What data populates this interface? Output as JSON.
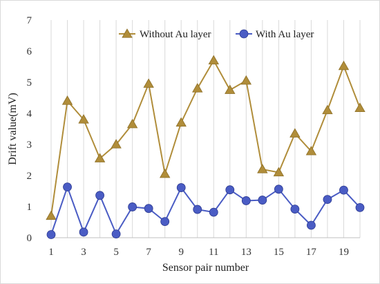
{
  "chart_data": {
    "type": "line",
    "x": [
      1,
      2,
      3,
      4,
      5,
      6,
      7,
      8,
      9,
      10,
      11,
      12,
      13,
      14,
      15,
      16,
      17,
      18,
      19,
      20
    ],
    "x_tick_labels": [
      "1",
      "3",
      "5",
      "7",
      "9",
      "11",
      "13",
      "15",
      "17",
      "19"
    ],
    "y_tick_labels": [
      "0",
      "1",
      "2",
      "3",
      "4",
      "5",
      "6",
      "7"
    ],
    "xlabel": "Sensor pair number",
    "ylabel": "Drift value(mV)",
    "ylim": [
      0,
      7
    ],
    "xlim": [
      1,
      20
    ],
    "grid": "vertical",
    "legend_position": "top",
    "series": [
      {
        "name": "Without Au layer",
        "marker": "triangle",
        "color": "#b08d3a",
        "values": [
          0.7,
          4.4,
          3.8,
          2.55,
          3.0,
          3.65,
          4.95,
          2.05,
          3.7,
          4.8,
          5.7,
          4.75,
          5.05,
          2.2,
          2.1,
          3.35,
          2.78,
          4.1,
          5.52,
          4.17
        ]
      },
      {
        "name": "With Au layer",
        "marker": "circle",
        "color": "#4a5cc4",
        "values": [
          0.1,
          1.63,
          0.18,
          1.36,
          0.12,
          0.99,
          0.94,
          0.52,
          1.61,
          0.91,
          0.82,
          1.54,
          1.19,
          1.21,
          1.56,
          0.92,
          0.4,
          1.23,
          1.53,
          0.97
        ]
      }
    ]
  }
}
